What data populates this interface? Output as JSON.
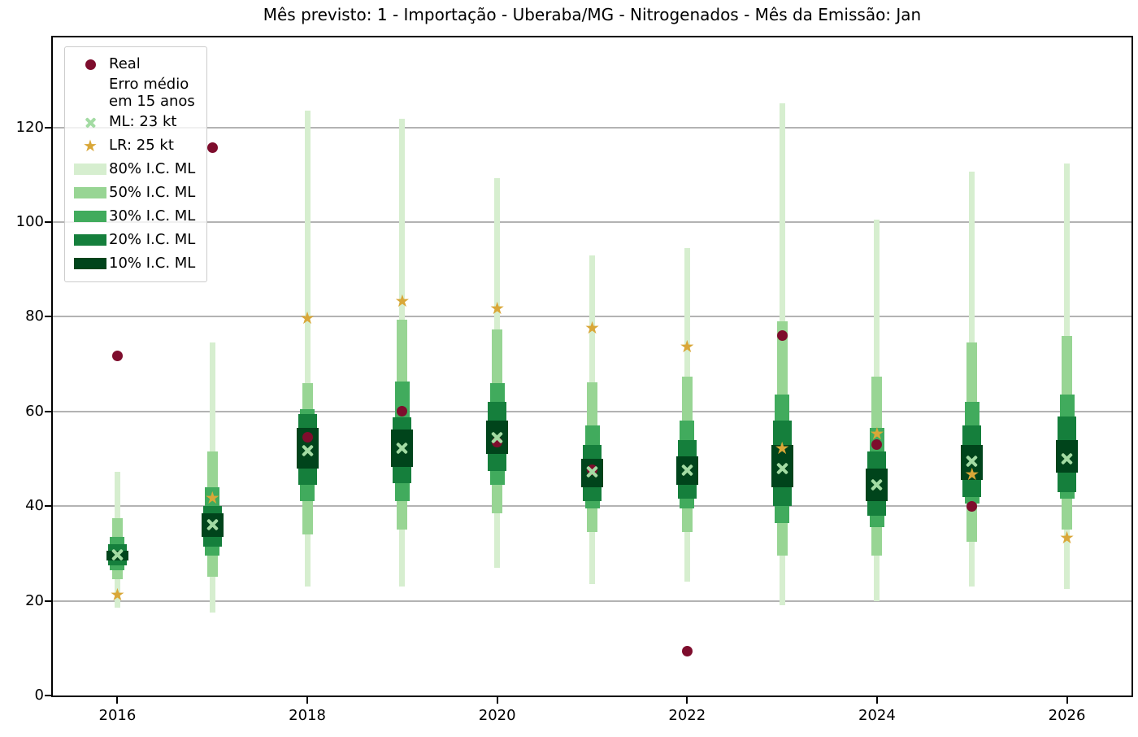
{
  "chart_data": {
    "type": "fan-forecast-bar",
    "title": "Mês previsto: 1 - Importação - Uberaba/MG - Nitrogenados - Mês da Emissão: Jan",
    "xlabel": "",
    "ylabel": "",
    "unit": "kt",
    "grid": "horizontal",
    "legend_position": "upper-left",
    "xlim": [
      2015.32,
      2026.68
    ],
    "ylim": [
      0,
      139
    ],
    "yticks": [
      0,
      20,
      40,
      60,
      80,
      100,
      120
    ],
    "xticks": [
      2016,
      2018,
      2020,
      2022,
      2024,
      2026
    ],
    "legend": {
      "items": [
        {
          "marker": "circle",
          "color_key": "real",
          "label": "Real"
        },
        {
          "marker": "none",
          "color_key": null,
          "label": "Erro médio\nem 15 anos"
        },
        {
          "marker": "x",
          "color_key": "ml",
          "label": "ML: 23 kt"
        },
        {
          "marker": "star",
          "color_key": "lr",
          "label": "LR: 25 kt"
        },
        {
          "marker": "patch",
          "color_key": "ci80",
          "label": "80% I.C. ML"
        },
        {
          "marker": "patch",
          "color_key": "ci50",
          "label": "50% I.C. ML"
        },
        {
          "marker": "patch",
          "color_key": "ci30",
          "label": "30% I.C. ML"
        },
        {
          "marker": "patch",
          "color_key": "ci20",
          "label": "20% I.C. ML"
        },
        {
          "marker": "patch",
          "color_key": "ci10",
          "label": "10% I.C. ML"
        }
      ]
    },
    "years": [
      {
        "year": 2016,
        "ci80": [
          18.5,
          47.2
        ],
        "ci50": [
          24.5,
          37.5
        ],
        "ci30": [
          26.5,
          33.5
        ],
        "ci20": [
          27.5,
          32
        ],
        "ci10": [
          28.5,
          30.5
        ],
        "ml": 29.7,
        "lr": 21,
        "real": 71.7,
        "real_faded": false
      },
      {
        "year": 2017,
        "ci80": [
          17.5,
          74.5
        ],
        "ci50": [
          25,
          51.5
        ],
        "ci30": [
          29.5,
          44
        ],
        "ci20": [
          31.5,
          40
        ],
        "ci10": [
          33.5,
          38.5
        ],
        "ml": 36,
        "lr": 41.5,
        "real": 115.7,
        "real_faded": true
      },
      {
        "year": 2018,
        "ci80": [
          23,
          123.5
        ],
        "ci50": [
          34,
          66
        ],
        "ci30": [
          41,
          60.5
        ],
        "ci20": [
          44.5,
          59.5
        ],
        "ci10": [
          48,
          56.5
        ],
        "ml": 51.7,
        "lr": 79.5,
        "real": 54.5,
        "real_faded": false
      },
      {
        "year": 2019,
        "ci80": [
          23,
          121.8
        ],
        "ci50": [
          35,
          79.4
        ],
        "ci30": [
          41,
          66.3
        ],
        "ci20": [
          44.8,
          58.8
        ],
        "ci10": [
          48.2,
          56.2
        ],
        "ml": 52.3,
        "lr": 83,
        "real": 60,
        "real_faded": false
      },
      {
        "year": 2020,
        "ci80": [
          27,
          109.3
        ],
        "ci50": [
          38.5,
          77.3
        ],
        "ci30": [
          44.5,
          66
        ],
        "ci20": [
          47.5,
          62
        ],
        "ci10": [
          51,
          58
        ],
        "ml": 54.5,
        "lr": 81.5,
        "real": 53.5,
        "real_faded": false
      },
      {
        "year": 2021,
        "ci80": [
          23.5,
          93
        ],
        "ci50": [
          34.5,
          66.2
        ],
        "ci30": [
          39.5,
          57
        ],
        "ci20": [
          41,
          53
        ],
        "ci10": [
          44,
          50
        ],
        "ml": 47.3,
        "lr": 77.4,
        "real": 47.7,
        "real_faded": false
      },
      {
        "year": 2022,
        "ci80": [
          24,
          94.5
        ],
        "ci50": [
          34.5,
          67.3
        ],
        "ci30": [
          39.5,
          58
        ],
        "ci20": [
          41.5,
          54
        ],
        "ci10": [
          44.5,
          50.5
        ],
        "ml": 47.6,
        "lr": 73.4,
        "real": 9.3,
        "real_faded": false
      },
      {
        "year": 2023,
        "ci80": [
          19,
          125
        ],
        "ci50": [
          29.5,
          79
        ],
        "ci30": [
          36.5,
          63.5
        ],
        "ci20": [
          40,
          58
        ],
        "ci10": [
          44,
          53
        ],
        "ml": 48,
        "lr": 52,
        "real": 76,
        "real_faded": false
      },
      {
        "year": 2024,
        "ci80": [
          20,
          100.5
        ],
        "ci50": [
          29.5,
          67.3
        ],
        "ci30": [
          35.5,
          56.5
        ],
        "ci20": [
          38,
          51.5
        ],
        "ci10": [
          41,
          48
        ],
        "ml": 44.5,
        "lr": 55,
        "real": 53,
        "real_faded": false
      },
      {
        "year": 2025,
        "ci80": [
          23,
          110.6
        ],
        "ci50": [
          32.5,
          74.5
        ],
        "ci30": [
          40.5,
          62
        ],
        "ci20": [
          42,
          57
        ],
        "ci10": [
          45.5,
          53
        ],
        "ml": 49.5,
        "lr": 46.5,
        "real": 40,
        "real_faded": false
      },
      {
        "year": 2026,
        "ci80": [
          22.5,
          112.3
        ],
        "ci50": [
          35,
          76
        ],
        "ci30": [
          41.5,
          63.5
        ],
        "ci20": [
          43,
          59
        ],
        "ci10": [
          47,
          54
        ],
        "ml": 50,
        "lr": 33,
        "real": null,
        "real_faded": false
      }
    ]
  },
  "colors": {
    "ci80": "#d6eecf",
    "ci50": "#98d594",
    "ci30": "#41ab5d",
    "ci20": "#157f3c",
    "ci10": "#00441b",
    "real": "#7e0d2d",
    "ml": "#a3dba3",
    "lr": "#d9a738",
    "grid": "#b3b3b3",
    "spine": "#000000",
    "background": "#ffffff"
  }
}
